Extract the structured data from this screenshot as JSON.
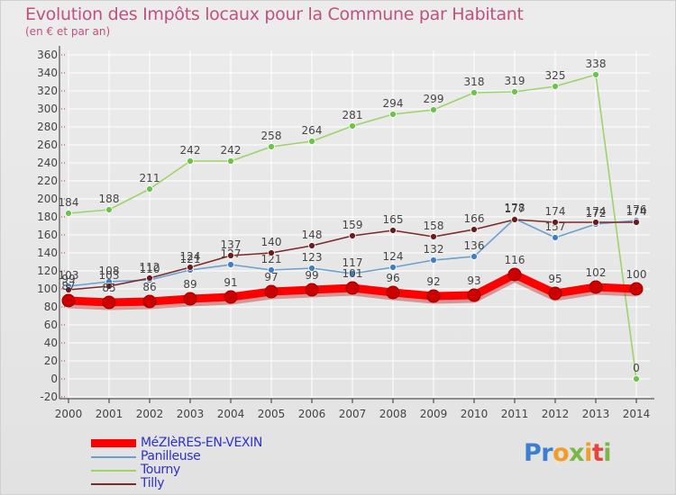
{
  "page": {
    "title": "Evolution des Impôts locaux pour la Commune par Habitant",
    "subtitle": "(en € et par an)"
  },
  "logo": {
    "parts": [
      "Pr",
      "o",
      "x",
      "i",
      "t",
      "i"
    ]
  },
  "colors": {
    "title": "#c0517f",
    "legend_text": "#2f31c9",
    "grid": "#ffffff",
    "axis": "#333333"
  },
  "chart_data": {
    "type": "line",
    "x": [
      "2000",
      "2001",
      "2002",
      "2003",
      "2004",
      "2005",
      "2006",
      "2007",
      "2008",
      "2009",
      "2010",
      "2011",
      "2012",
      "2013",
      "2014"
    ],
    "ylim": [
      -20,
      360
    ],
    "ytick_step": 20,
    "grid": true,
    "legend_position": "bottom-left",
    "series": [
      {
        "name": "MéZIèRES-EN-VEXIN",
        "color": "#ff0000",
        "marker_color": "#cc0000",
        "thick": true,
        "values": [
          87,
          85,
          86,
          89,
          91,
          97,
          99,
          101,
          96,
          92,
          93,
          116,
          95,
          102,
          100
        ]
      },
      {
        "name": "Panilleuse",
        "color": "#6a9fd1",
        "marker_color": "#3f7fc8",
        "thick": false,
        "values": [
          103,
          108,
          110,
          121,
          127,
          121,
          123,
          117,
          124,
          132,
          136,
          178,
          157,
          172,
          176
        ]
      },
      {
        "name": "Tourny",
        "color": "#9ed36a",
        "marker_color": "#6dc24b",
        "thick": false,
        "values": [
          184,
          188,
          211,
          242,
          242,
          258,
          264,
          281,
          294,
          299,
          318,
          319,
          325,
          338,
          0
        ]
      },
      {
        "name": "Tilly",
        "color": "#7b2a2a",
        "marker_color": "#6a1c1c",
        "thick": false,
        "values": [
          99,
          103,
          112,
          124,
          137,
          140,
          148,
          159,
          165,
          158,
          166,
          177,
          174,
          174,
          174
        ]
      }
    ]
  }
}
